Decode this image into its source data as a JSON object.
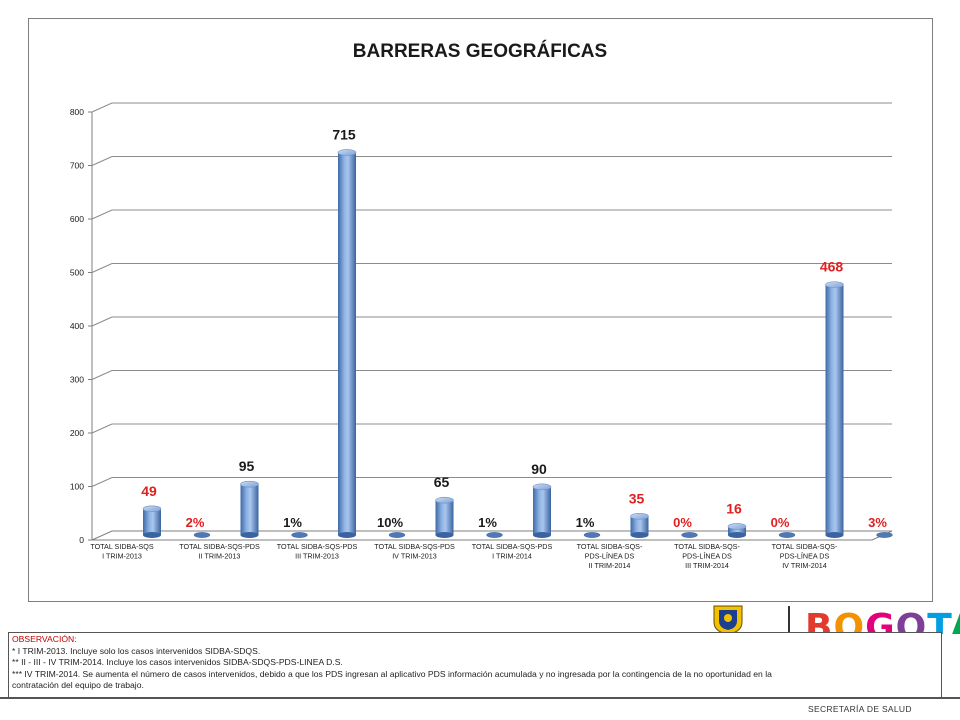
{
  "chart_data": {
    "type": "bar",
    "title": "BARRERAS GEOGRÁFICAS",
    "ylim": [
      0,
      800
    ],
    "yticks": [
      0,
      100,
      200,
      300,
      400,
      500,
      600,
      700,
      800
    ],
    "grid": true,
    "categories": [
      [
        "TOTAL SIDBA-SQS",
        "I TRIM-2013"
      ],
      [
        "TOTAL SIDBA-SQS-PDS",
        "II TRIM-2013"
      ],
      [
        "TOTAL SIDBA-SQS-PDS",
        "III TRIM-2013"
      ],
      [
        "TOTAL SIDBA-SQS-PDS",
        "IV TRIM-2013"
      ],
      [
        "TOTAL SIDBA-SQS-PDS",
        "I TRIM-2014"
      ],
      [
        "TOTAL SIDBA-SQS-",
        "PDS-LÍNEA DS",
        "II TRIM-2014"
      ],
      [
        "TOTAL SIDBA-SQS-",
        "PDS-LÍNEA DS",
        "III TRIM-2014"
      ],
      [
        "TOTAL SIDBA-SQS-",
        "PDS-LÍNEA DS",
        "IV TRIM-2014"
      ]
    ],
    "values": [
      49,
      95,
      715,
      65,
      90,
      35,
      16,
      468
    ],
    "value_labels": [
      "49",
      "95",
      "715",
      "65",
      "90",
      "35",
      "16",
      "468"
    ],
    "value_label_colors": [
      "#e02020",
      "#1a1a1a",
      "#1a1a1a",
      "#1a1a1a",
      "#1a1a1a",
      "#e02020",
      "#e02020",
      "#e02020"
    ],
    "percent_labels": [
      "2%",
      "1%",
      "10%",
      "1%",
      "1%",
      "0%",
      "0%",
      "3%"
    ],
    "percent_label_colors": [
      "#e02020",
      "#1a1a1a",
      "#1a1a1a",
      "#1a1a1a",
      "#1a1a1a",
      "#e02020",
      "#e02020",
      "#e02020"
    ],
    "bar_color": "#5b87c5"
  },
  "note": {
    "title": "OBSERVACIÓN:",
    "lines": [
      "* I TRIM-2013. Incluye solo los casos intervenidos SIDBA-SDQS.",
      "** II - III - IV TRIM-2014. Incluye los casos intervenidos SIDBA-SDQS-PDS-LINEA D.S.",
      "*** IV TRIM-2014. Se aumenta el número de casos intervenidos, debido a que los PDS ingresan al aplicativo PDS información acumulada y no ingresada por la contingencia de la no oportunidad en la",
      "contratación del equipo de trabajo."
    ]
  },
  "logo": {
    "text": "BOGOTÁ",
    "colors": [
      "#e23b2e",
      "#f39200",
      "#e4007c",
      "#7f3f98",
      "#009fe3",
      "#00a651"
    ]
  },
  "footer": {
    "text": "SECRETARÍA DE SALUD"
  }
}
